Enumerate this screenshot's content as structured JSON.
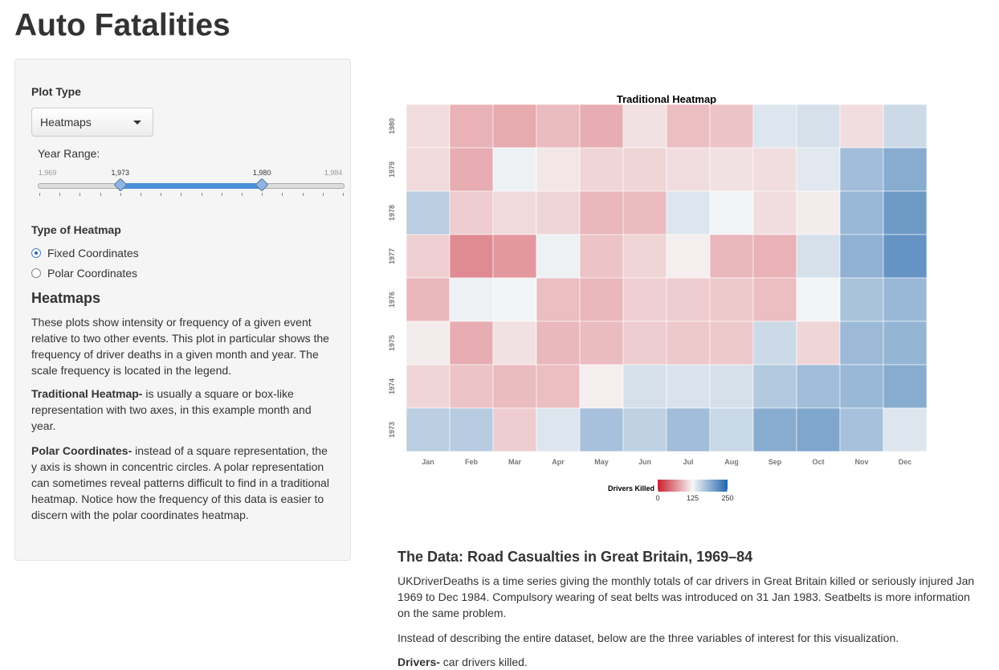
{
  "page": {
    "title": "Auto Fatalities"
  },
  "sidebar": {
    "plot_type_label": "Plot Type",
    "plot_type_value": "Heatmaps",
    "year_range": {
      "label": "Year Range:",
      "min": 1969,
      "max": 1984,
      "from": 1973,
      "to": 1980,
      "min_label": "1,969",
      "max_label": "1,984",
      "from_label": "1,973",
      "to_label": "1,980"
    },
    "heatmap_type_label": "Type of Heatmap",
    "options": [
      {
        "label": "Fixed Coordinates",
        "selected": true
      },
      {
        "label": "Polar Coordinates",
        "selected": false
      }
    ],
    "heading": "Heatmaps",
    "paragraph1": "These plots show intensity or frequency of a given event relative to two other events. This plot in particular shows the frequency of driver deaths in a given month and year. The scale frequency is located in the legend.",
    "traditional_term": "Traditional Heatmap-",
    "traditional_text": " is usually a square or box-like representation with two axes, in this example month and year.",
    "polar_term": "Polar Coordinates-",
    "polar_text": " instead of a square representation, the y axis is shown in concentric circles. A polar representation can sometimes reveal patterns difficult to find in a traditional heatmap. Notice how the frequency of this data is easier to discern with the polar coordinates heatmap."
  },
  "chart_data": {
    "type": "heatmap",
    "title": "Traditional Heatmap",
    "x_categories": [
      "Jan",
      "Feb",
      "Mar",
      "Apr",
      "May",
      "Jun",
      "Jul",
      "Aug",
      "Sep",
      "Oct",
      "Nov",
      "Dec"
    ],
    "y_categories": [
      "1980",
      "1979",
      "1978",
      "1977",
      "1976",
      "1975",
      "1974",
      "1973"
    ],
    "values": [
      [
        110,
        85,
        80,
        90,
        82,
        112,
        92,
        95,
        140,
        145,
        110,
        150
      ],
      [
        108,
        82,
        130,
        115,
        105,
        105,
        110,
        112,
        110,
        138,
        175,
        190
      ],
      [
        160,
        100,
        108,
        105,
        88,
        90,
        140,
        128,
        110,
        118,
        180,
        205
      ],
      [
        102,
        62,
        70,
        130,
        95,
        105,
        120,
        88,
        85,
        145,
        185,
        210
      ],
      [
        88,
        130,
        128,
        92,
        88,
        102,
        100,
        98,
        92,
        128,
        170,
        180
      ],
      [
        118,
        82,
        112,
        88,
        90,
        100,
        98,
        98,
        150,
        105,
        178,
        182
      ],
      [
        105,
        95,
        90,
        92,
        120,
        145,
        142,
        145,
        165,
        175,
        180,
        190
      ],
      [
        160,
        162,
        100,
        140,
        172,
        158,
        175,
        152,
        190,
        195,
        172,
        140
      ]
    ],
    "legend": {
      "title": "Drivers Killed",
      "ticks": [
        0,
        125,
        250
      ],
      "low_color": "#c9202e",
      "mid_color": "#f7f7f7",
      "high_color": "#2166ac"
    },
    "value_range": [
      0,
      250
    ]
  },
  "main": {
    "data_heading": "The Data: Road Casualties in Great Britain, 1969–84",
    "p1": "UKDriverDeaths is a time series giving the monthly totals of car drivers in Great Britain killed or seriously injured Jan 1969 to Dec 1984. Compulsory wearing of seat belts was introduced on 31 Jan 1983. Seatbelts is more information on the same problem.",
    "p2": "Instead of describing the entire dataset, below are the three variables of interest for this visualization.",
    "drivers_term": "Drivers-",
    "drivers_text": " car drivers killed."
  }
}
